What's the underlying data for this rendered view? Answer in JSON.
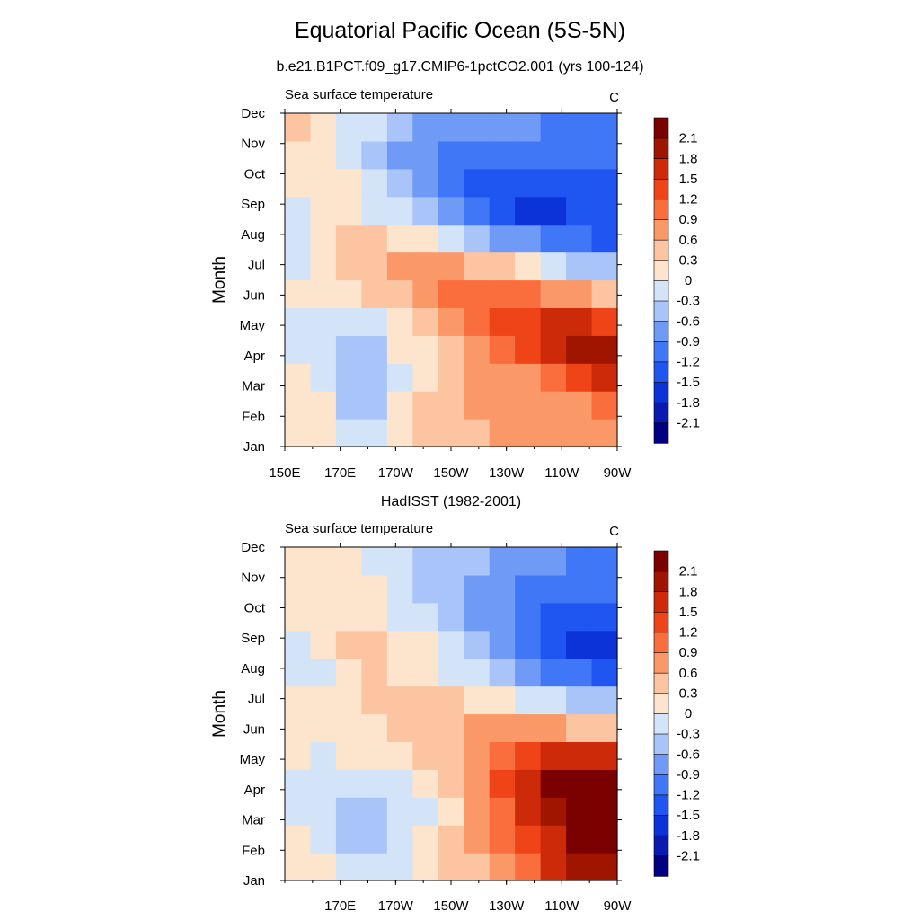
{
  "figure": {
    "title": "Equatorial Pacific Ocean (5S-5N)"
  },
  "chart_data": [
    {
      "type": "heatmap",
      "title": "b.e21.B1PCT.f09_g17.CMIP6-1pctCO2.001 (yrs 100-124)",
      "left_label": "Sea surface temperature",
      "units": "C",
      "ylabel": "Month",
      "xlabel": "",
      "x_tick_labels": [
        "150E",
        "170E",
        "170W",
        "150W",
        "130W",
        "110W",
        "90W"
      ],
      "y_tick_labels": [
        "Jan",
        "Feb",
        "Mar",
        "Apr",
        "May",
        "Jun",
        "Jul",
        "Aug",
        "Sep",
        "Oct",
        "Nov",
        "Dec"
      ],
      "x_lons": [
        150,
        160,
        170,
        180,
        190,
        200,
        210,
        220,
        230,
        240,
        250,
        260,
        270
      ],
      "levels": [
        -2.1,
        -1.8,
        -1.5,
        -1.2,
        -0.9,
        -0.6,
        -0.3,
        0,
        0.3,
        0.6,
        0.9,
        1.2,
        1.5,
        1.8,
        2.1
      ],
      "z": [
        [
          0.1,
          0.1,
          -0.3,
          -0.2,
          0.1,
          0.3,
          0.4,
          0.5,
          0.6,
          0.6,
          0.6,
          0.6,
          0.7
        ],
        [
          0.1,
          0.0,
          -0.4,
          -0.4,
          0.0,
          0.3,
          0.5,
          0.6,
          0.6,
          0.6,
          0.6,
          0.8,
          0.9
        ],
        [
          0.0,
          -0.1,
          -0.5,
          -0.5,
          -0.1,
          0.2,
          0.5,
          0.6,
          0.7,
          0.8,
          0.9,
          1.2,
          1.5
        ],
        [
          -0.1,
          -0.2,
          -0.4,
          -0.4,
          0.0,
          0.2,
          0.4,
          0.7,
          1.0,
          1.3,
          1.6,
          1.8,
          1.8
        ],
        [
          -0.1,
          -0.1,
          -0.2,
          -0.1,
          0.1,
          0.3,
          0.6,
          0.9,
          1.2,
          1.4,
          1.5,
          1.5,
          1.4
        ],
        [
          0.0,
          0.1,
          0.2,
          0.3,
          0.5,
          0.7,
          0.9,
          1.0,
          1.0,
          1.0,
          0.8,
          0.6,
          0.4
        ],
        [
          -0.1,
          0.1,
          0.3,
          0.5,
          0.6,
          0.6,
          0.6,
          0.5,
          0.3,
          0.1,
          -0.2,
          -0.4,
          -0.6
        ],
        [
          -0.2,
          0.0,
          0.3,
          0.3,
          0.2,
          0.1,
          -0.1,
          -0.4,
          -0.7,
          -0.9,
          -1.1,
          -1.2,
          -1.3
        ],
        [
          -0.1,
          0.0,
          0.0,
          -0.1,
          -0.3,
          -0.6,
          -0.9,
          -1.2,
          -1.5,
          -1.8,
          -1.7,
          -1.5,
          -1.4
        ],
        [
          0.0,
          0.0,
          0.0,
          -0.3,
          -0.6,
          -0.9,
          -1.2,
          -1.4,
          -1.5,
          -1.5,
          -1.5,
          -1.4,
          -1.3
        ],
        [
          0.1,
          0.0,
          -0.1,
          -0.4,
          -0.7,
          -0.9,
          -1.0,
          -1.1,
          -1.1,
          -1.1,
          -1.1,
          -1.1,
          -1.1
        ],
        [
          0.3,
          0.0,
          -0.1,
          -0.3,
          -0.5,
          -0.7,
          -0.8,
          -0.8,
          -0.8,
          -0.9,
          -1.0,
          -1.1,
          -1.1
        ]
      ]
    },
    {
      "type": "heatmap",
      "title": "HadISST (1982-2001)",
      "left_label": "Sea surface temperature",
      "units": "C",
      "ylabel": "Month",
      "xlabel": "",
      "x_tick_labels": [
        "170E",
        "170W",
        "150W",
        "130W",
        "110W",
        "90W"
      ],
      "y_tick_labels": [
        "Jan",
        "Feb",
        "Mar",
        "Apr",
        "May",
        "Jun",
        "Jul",
        "Aug",
        "Sep",
        "Oct",
        "Nov",
        "Dec"
      ],
      "x_lons": [
        150,
        160,
        170,
        180,
        190,
        200,
        210,
        220,
        230,
        240,
        250,
        260,
        270
      ],
      "levels": [
        -2.1,
        -1.8,
        -1.5,
        -1.2,
        -0.9,
        -0.6,
        -0.3,
        0,
        0.3,
        0.6,
        0.9,
        1.2,
        1.5,
        1.8,
        2.1
      ],
      "z": [
        [
          0.1,
          0.0,
          -0.2,
          -0.2,
          -0.1,
          0.1,
          0.3,
          0.5,
          0.7,
          1.1,
          1.5,
          1.8,
          2.0
        ],
        [
          0.0,
          -0.2,
          -0.4,
          -0.4,
          -0.2,
          0.0,
          0.3,
          0.6,
          0.9,
          1.3,
          1.7,
          2.1,
          2.3
        ],
        [
          -0.1,
          -0.3,
          -0.4,
          -0.4,
          -0.3,
          -0.1,
          0.2,
          0.6,
          1.1,
          1.6,
          2.0,
          2.4,
          2.5
        ],
        [
          -0.1,
          -0.2,
          -0.3,
          -0.3,
          -0.2,
          0.0,
          0.3,
          0.7,
          1.2,
          1.7,
          2.1,
          2.3,
          2.3
        ],
        [
          0.0,
          -0.1,
          0.1,
          0.1,
          0.1,
          0.3,
          0.5,
          0.8,
          1.1,
          1.4,
          1.6,
          1.6,
          1.5
        ],
        [
          0.1,
          0.1,
          0.2,
          0.2,
          0.3,
          0.4,
          0.5,
          0.6,
          0.7,
          0.7,
          0.6,
          0.5,
          0.3
        ],
        [
          0.0,
          0.1,
          0.2,
          0.3,
          0.4,
          0.4,
          0.3,
          0.2,
          0.1,
          -0.1,
          -0.3,
          -0.4,
          -0.6
        ],
        [
          -0.2,
          -0.1,
          0.2,
          0.3,
          0.2,
          0.1,
          -0.1,
          -0.3,
          -0.5,
          -0.8,
          -1.0,
          -1.2,
          -1.4
        ],
        [
          -0.1,
          0.1,
          0.3,
          0.4,
          0.2,
          0.0,
          -0.3,
          -0.5,
          -0.8,
          -1.1,
          -1.4,
          -1.6,
          -1.6
        ],
        [
          0.1,
          0.2,
          0.1,
          0.1,
          -0.1,
          -0.3,
          -0.5,
          -0.7,
          -0.9,
          -1.1,
          -1.3,
          -1.4,
          -1.4
        ],
        [
          0.1,
          0.1,
          0.1,
          0.0,
          -0.2,
          -0.4,
          -0.6,
          -0.8,
          -0.9,
          -1.0,
          -1.1,
          -1.2,
          -1.2
        ],
        [
          0.1,
          0.1,
          0.1,
          -0.1,
          -0.2,
          -0.4,
          -0.5,
          -0.6,
          -0.7,
          -0.8,
          -0.9,
          -1.0,
          -1.0
        ]
      ]
    }
  ],
  "colorbar": {
    "colors": [
      "#000080",
      "#0a1ab0",
      "#0c33d8",
      "#1f55f0",
      "#3f77f6",
      "#6f9bf6",
      "#a9c4f8",
      "#d4e4f8",
      "#fde4cd",
      "#fcc4a1",
      "#fb9868",
      "#fa6e3e",
      "#ee4418",
      "#cc2a08",
      "#a01500",
      "#7b0000"
    ],
    "labels": [
      "-2.1",
      "-1.8",
      "-1.5",
      "-1.2",
      "-0.9",
      "-0.6",
      "-0.3",
      "0",
      "0.3",
      "0.6",
      "0.9",
      "1.2",
      "1.5",
      "1.8",
      "2.1"
    ]
  }
}
